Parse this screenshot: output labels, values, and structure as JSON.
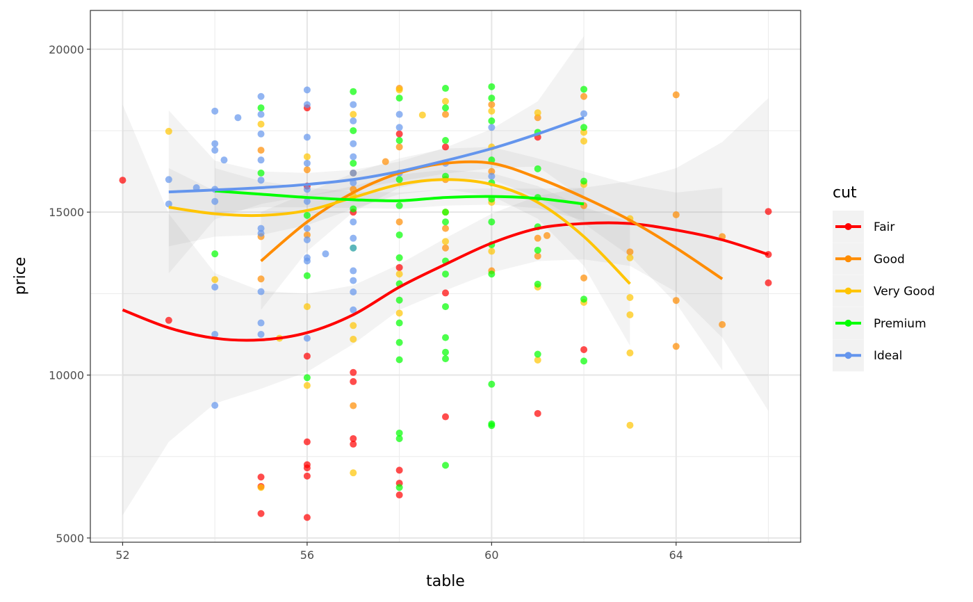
{
  "chart_data": {
    "type": "scatter",
    "title": "",
    "xlabel": "table",
    "ylabel": "price",
    "xlim": [
      51.3,
      66.7
    ],
    "ylim": [
      4870,
      21190
    ],
    "xticks": [
      52,
      56,
      60,
      64
    ],
    "xticks_minor": [
      54,
      58,
      62,
      66
    ],
    "yticks": [
      5000,
      10000,
      15000,
      20000
    ],
    "yticks_minor": [
      7500,
      12500,
      17500
    ],
    "grid": true,
    "legend": {
      "title": "cut",
      "position": "right"
    },
    "series": [
      {
        "name": "Fair",
        "color": "#ff0000",
        "points": [
          [
            52,
            15980
          ],
          [
            53,
            11680
          ],
          [
            55,
            6870
          ],
          [
            55,
            6580
          ],
          [
            55,
            5750
          ],
          [
            56,
            18200
          ],
          [
            56,
            15800
          ],
          [
            56,
            10580
          ],
          [
            56,
            7950
          ],
          [
            56,
            7250
          ],
          [
            56,
            7150
          ],
          [
            56,
            6900
          ],
          [
            56,
            5630
          ],
          [
            57,
            15000
          ],
          [
            57,
            10080
          ],
          [
            57,
            9800
          ],
          [
            57,
            8050
          ],
          [
            57,
            7880
          ],
          [
            58,
            17400
          ],
          [
            58,
            13300
          ],
          [
            58,
            7080
          ],
          [
            58,
            6680
          ],
          [
            58,
            6320
          ],
          [
            59,
            12520
          ],
          [
            59,
            8720
          ],
          [
            59,
            17000
          ],
          [
            61,
            17300
          ],
          [
            61,
            8820
          ],
          [
            62,
            10780
          ],
          [
            66,
            15020
          ],
          [
            66,
            13700
          ],
          [
            66,
            12830
          ]
        ],
        "smooth_x": [
          52,
          53,
          54,
          55,
          56,
          57,
          58,
          59,
          60,
          61,
          62,
          63,
          64,
          65,
          66
        ],
        "smooth_y": [
          12000,
          11450,
          11130,
          11080,
          11300,
          11850,
          12700,
          13400,
          14050,
          14500,
          14650,
          14650,
          14450,
          14150,
          13700
        ],
        "smooth_se": [
          6300,
          3500,
          2000,
          1500,
          1200,
          900,
          700,
          800,
          900,
          1000,
          1100,
          1300,
          1900,
          3000,
          4800
        ]
      },
      {
        "name": "Good",
        "color": "#ff8c00",
        "points": [
          [
            55,
            14250
          ],
          [
            55,
            12950
          ],
          [
            55,
            16900
          ],
          [
            56,
            16300
          ],
          [
            56,
            14300
          ],
          [
            57,
            16200
          ],
          [
            57,
            9060
          ],
          [
            57,
            15700
          ],
          [
            58,
            18800
          ],
          [
            58,
            17000
          ],
          [
            58,
            14700
          ],
          [
            57.7,
            16550
          ],
          [
            59,
            18000
          ],
          [
            59,
            16000
          ],
          [
            59,
            14500
          ],
          [
            59,
            13900
          ],
          [
            60,
            18300
          ],
          [
            60,
            16250
          ],
          [
            60,
            13200
          ],
          [
            61,
            17900
          ],
          [
            61,
            14200
          ],
          [
            61,
            13650
          ],
          [
            61.2,
            14280
          ],
          [
            62,
            18550
          ],
          [
            62,
            15200
          ],
          [
            62,
            12980
          ],
          [
            63,
            13780
          ],
          [
            64,
            18600
          ],
          [
            64,
            14920
          ],
          [
            64,
            12290
          ],
          [
            64,
            10880
          ],
          [
            65,
            11550
          ],
          [
            65,
            14250
          ]
        ],
        "smooth_x": [
          55,
          56,
          57,
          58,
          59,
          60,
          61,
          62,
          63,
          64,
          65
        ],
        "smooth_y": [
          13500,
          14700,
          15600,
          16200,
          16500,
          16500,
          16050,
          15450,
          14750,
          13900,
          12950
        ],
        "smooth_se": [
          1500,
          900,
          600,
          450,
          450,
          500,
          600,
          800,
          1100,
          1700,
          2800
        ]
      },
      {
        "name": "Very Good",
        "color": "#ffc400",
        "points": [
          [
            53,
            17480
          ],
          [
            54,
            12930
          ],
          [
            55,
            17700
          ],
          [
            55,
            6550
          ],
          [
            55.4,
            11130
          ],
          [
            56,
            16700
          ],
          [
            56,
            12100
          ],
          [
            56,
            9680
          ],
          [
            57,
            18000
          ],
          [
            57,
            15500
          ],
          [
            57,
            11520
          ],
          [
            57,
            11100
          ],
          [
            57,
            7000
          ],
          [
            58,
            18750
          ],
          [
            58,
            13100
          ],
          [
            58,
            11900
          ],
          [
            58.5,
            17980
          ],
          [
            59,
            18400
          ],
          [
            59,
            15000
          ],
          [
            59,
            14100
          ],
          [
            60,
            18100
          ],
          [
            60,
            17000
          ],
          [
            60,
            15300
          ],
          [
            60,
            13800
          ],
          [
            61,
            18050
          ],
          [
            61,
            12700
          ],
          [
            61,
            10460
          ],
          [
            62,
            17450
          ],
          [
            62,
            17180
          ],
          [
            62,
            15850
          ],
          [
            62,
            12230
          ],
          [
            63,
            14800
          ],
          [
            63,
            13600
          ],
          [
            63,
            12380
          ],
          [
            63,
            11850
          ],
          [
            63,
            10680
          ],
          [
            63,
            8460
          ]
        ],
        "smooth_x": [
          53,
          54,
          55,
          56,
          57,
          58,
          59,
          60,
          61,
          62,
          63
        ],
        "smooth_y": [
          15150,
          14950,
          14900,
          15050,
          15450,
          15850,
          16000,
          15850,
          15300,
          14250,
          12800
        ],
        "smooth_se": [
          1200,
          700,
          600,
          450,
          350,
          300,
          300,
          350,
          500,
          900,
          1900
        ]
      },
      {
        "name": "Premium",
        "color": "#00ff00",
        "points": [
          [
            54,
            13720
          ],
          [
            55,
            16200
          ],
          [
            55,
            18200
          ],
          [
            56,
            14900
          ],
          [
            56,
            13050
          ],
          [
            56,
            9920
          ],
          [
            57,
            18700
          ],
          [
            57,
            17500
          ],
          [
            57,
            16500
          ],
          [
            57,
            15100
          ],
          [
            57,
            13900
          ],
          [
            58,
            18500
          ],
          [
            58,
            17200
          ],
          [
            58,
            16000
          ],
          [
            58,
            15200
          ],
          [
            58,
            14300
          ],
          [
            58,
            13600
          ],
          [
            58,
            12800
          ],
          [
            58,
            12300
          ],
          [
            58,
            11600
          ],
          [
            58,
            11000
          ],
          [
            58,
            10470
          ],
          [
            58,
            8220
          ],
          [
            58,
            8050
          ],
          [
            58,
            6550
          ],
          [
            59,
            18800
          ],
          [
            59,
            18200
          ],
          [
            59,
            17200
          ],
          [
            59,
            16100
          ],
          [
            59,
            15000
          ],
          [
            59,
            14700
          ],
          [
            59,
            13500
          ],
          [
            59,
            13100
          ],
          [
            59,
            12100
          ],
          [
            59,
            11150
          ],
          [
            59,
            10700
          ],
          [
            59,
            10500
          ],
          [
            59,
            7230
          ],
          [
            60,
            18850
          ],
          [
            60,
            18500
          ],
          [
            60,
            17800
          ],
          [
            60,
            16600
          ],
          [
            60,
            15900
          ],
          [
            60,
            15400
          ],
          [
            60,
            14700
          ],
          [
            60,
            14000
          ],
          [
            60,
            13100
          ],
          [
            60,
            9720
          ],
          [
            60,
            8500
          ],
          [
            60,
            8450
          ],
          [
            61,
            17450
          ],
          [
            61,
            16330
          ],
          [
            61,
            15450
          ],
          [
            61,
            14550
          ],
          [
            61,
            13830
          ],
          [
            61,
            12790
          ],
          [
            61,
            10640
          ],
          [
            62,
            18770
          ],
          [
            62,
            17600
          ],
          [
            62,
            15950
          ],
          [
            62,
            12330
          ],
          [
            62,
            10430
          ]
        ],
        "smooth_x": [
          54,
          55,
          56,
          57,
          58,
          59,
          60,
          61,
          62
        ],
        "smooth_y": [
          15650,
          15550,
          15450,
          15380,
          15350,
          15450,
          15480,
          15420,
          15250
        ],
        "smooth_se": [
          700,
          400,
          300,
          250,
          250,
          250,
          250,
          300,
          500
        ]
      },
      {
        "name": "Ideal",
        "color": "#6495ed",
        "points": [
          [
            53,
            16000
          ],
          [
            53,
            15250
          ],
          [
            53.6,
            15750
          ],
          [
            54,
            18100
          ],
          [
            54,
            17100
          ],
          [
            54,
            16900
          ],
          [
            54,
            15700
          ],
          [
            54,
            15330
          ],
          [
            54,
            12700
          ],
          [
            54,
            11250
          ],
          [
            54,
            9070
          ],
          [
            54.2,
            16600
          ],
          [
            54.5,
            17900
          ],
          [
            55,
            18550
          ],
          [
            55,
            18000
          ],
          [
            55,
            17400
          ],
          [
            55,
            16600
          ],
          [
            55,
            15980
          ],
          [
            55,
            14500
          ],
          [
            55,
            14350
          ],
          [
            55,
            12560
          ],
          [
            55,
            11600
          ],
          [
            55,
            11250
          ],
          [
            56,
            18750
          ],
          [
            56,
            18300
          ],
          [
            56,
            17300
          ],
          [
            56,
            16500
          ],
          [
            56,
            15700
          ],
          [
            56,
            15330
          ],
          [
            56,
            14500
          ],
          [
            56,
            14150
          ],
          [
            56,
            13600
          ],
          [
            56,
            13500
          ],
          [
            56,
            11130
          ],
          [
            56.4,
            13720
          ],
          [
            57,
            18300
          ],
          [
            57,
            17800
          ],
          [
            57,
            17100
          ],
          [
            57,
            16700
          ],
          [
            57,
            16200
          ],
          [
            57,
            15900
          ],
          [
            57,
            14700
          ],
          [
            57,
            14200
          ],
          [
            57,
            13900
          ],
          [
            57,
            13200
          ],
          [
            57,
            12900
          ],
          [
            57,
            12550
          ],
          [
            57,
            12000
          ],
          [
            58,
            18000
          ],
          [
            58,
            17600
          ],
          [
            58,
            16200
          ],
          [
            59,
            16500
          ],
          [
            60,
            17600
          ],
          [
            60,
            16100
          ],
          [
            62,
            18020
          ]
        ],
        "smooth_x": [
          53,
          54,
          55,
          56,
          57,
          58,
          59,
          60,
          61,
          62
        ],
        "smooth_y": [
          15620,
          15680,
          15750,
          15850,
          16000,
          16250,
          16580,
          16950,
          17400,
          17900
        ],
        "smooth_se": [
          2500,
          900,
          500,
          350,
          300,
          300,
          400,
          600,
          1000,
          2500
        ]
      }
    ]
  }
}
